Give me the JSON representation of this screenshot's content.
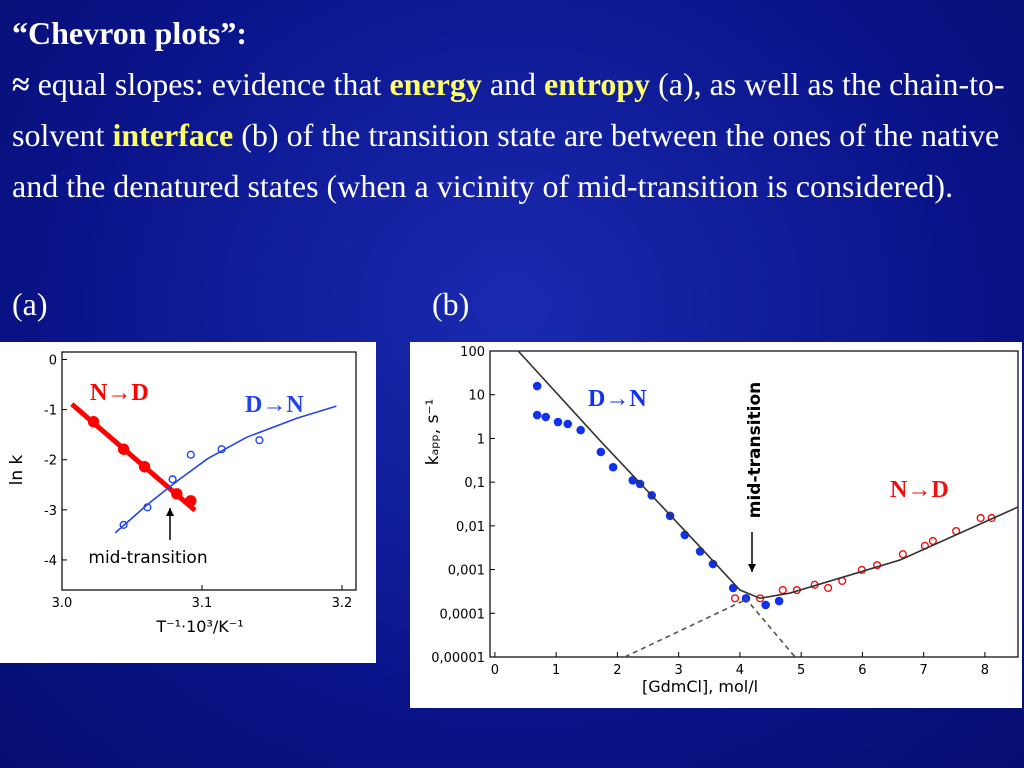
{
  "slide": {
    "title": "“Chevron plots”:",
    "body": [
      {
        "text": "≈",
        "bold": true
      },
      {
        "text": " equal slopes: evidence that "
      },
      {
        "text": "energy",
        "bold": true,
        "color": "#ffff66"
      },
      {
        "text": " and "
      },
      {
        "text": "entropy",
        "bold": true,
        "color": "#ffff66"
      },
      {
        "text": " (a), as well as the chain-to-solvent "
      },
      {
        "text": "interface",
        "bold": true,
        "color": "#ffff66"
      },
      {
        "text": " (b) of the transition state are between the ones of the native and the denatured states (when a vicinity of mid-transition is considered)."
      }
    ],
    "panel_labels": [
      "(a)",
      "(b)"
    ]
  },
  "chart_data": [
    {
      "type": "scatter",
      "xlabel": "T⁻¹·10³/K⁻¹",
      "ylabel": "ln k",
      "xlim": [
        3.0,
        3.21
      ],
      "xticks": [
        {
          "value": 3.0,
          "label": "3.0"
        },
        3.1,
        3.2
      ],
      "ylim": [
        -4.6,
        0.15
      ],
      "yticks": [
        0,
        -1,
        -2,
        -3,
        -4
      ],
      "annotations": [
        {
          "text": "mid-transition"
        }
      ],
      "series": [
        {
          "name": "N→D",
          "color": "#ff0000",
          "style": "filled",
          "x": [
            3.0225,
            3.044,
            3.059,
            3.082,
            3.092
          ],
          "values": [
            -1.24,
            -1.79,
            -2.14,
            -2.68,
            -2.82
          ]
        },
        {
          "color": "#ff0000",
          "style": "thick-line",
          "x": [
            3.007,
            3.095
          ],
          "values": [
            -0.89,
            -3.01
          ]
        },
        {
          "name": "D→N",
          "color": "#2244ee",
          "style": "open",
          "x": [
            3.044,
            3.061,
            3.079,
            3.092,
            3.114,
            3.141
          ],
          "values": [
            -3.3,
            -2.95,
            -2.39,
            -1.9,
            -1.79,
            -1.61
          ]
        },
        {
          "color": "#2244ee",
          "style": "line",
          "x": [
            3.038,
            3.062,
            3.083,
            3.104,
            3.132,
            3.168,
            3.196
          ],
          "values": [
            -3.46,
            -2.87,
            -2.41,
            -1.98,
            -1.55,
            -1.17,
            -0.93
          ]
        }
      ]
    },
    {
      "type": "scatter",
      "ylog": true,
      "xlabel": "[GdmCl], mol/l",
      "ylabel": "kₐₚₚ, s⁻¹",
      "xlim": [
        -0.08,
        8.54
      ],
      "xticks": [
        0,
        1,
        2,
        3,
        4,
        5,
        6,
        7,
        8
      ],
      "ylim": [
        1e-05,
        100
      ],
      "yticks": [
        100,
        10,
        1,
        {
          "value": 0.1,
          "label": "0,1"
        },
        {
          "value": 0.01,
          "label": "0,01"
        },
        {
          "value": 0.001,
          "label": "0,001"
        },
        {
          "value": 0.0001,
          "label": "0,0001"
        },
        {
          "value": 1e-05,
          "label": "0,00001"
        }
      ],
      "annotations": [
        {
          "text": "mid-transition"
        }
      ],
      "series": [
        {
          "name": "D→N",
          "color": "#1133ee",
          "style": "filled",
          "x": [
            0.69,
            0.69,
            0.83,
            1.03,
            1.19,
            1.4,
            1.73,
            1.93,
            2.25,
            2.37,
            2.56,
            2.86,
            3.1,
            3.35,
            3.56,
            3.89,
            4.1,
            4.42,
            4.64
          ],
          "values": [
            15.8,
            3.43,
            3.09,
            2.37,
            2.14,
            1.55,
            0.49,
            0.22,
            0.11,
            0.091,
            0.05,
            0.017,
            0.0062,
            0.0026,
            0.00134,
            0.00038,
            0.00022,
            0.000155,
            0.00019
          ]
        },
        {
          "name": "N→D",
          "color": "#ee1111",
          "style": "open",
          "x": [
            3.92,
            4.33,
            4.7,
            4.93,
            5.22,
            5.44,
            5.67,
            5.99,
            6.24,
            6.66,
            7.02,
            7.15,
            7.53,
            7.93,
            8.11
          ],
          "values": [
            0.00022,
            0.00022,
            0.00034,
            0.00034,
            0.00045,
            0.00038,
            0.00055,
            0.00098,
            0.00126,
            0.00224,
            0.0035,
            0.0045,
            0.0076,
            0.0151,
            0.0151
          ]
        },
        {
          "color": "#333333",
          "style": "line",
          "x": [
            0.38,
            1.71,
            3.35,
            4.0,
            4.33,
            4.82,
            6.61,
            8.54
          ],
          "values": [
            100,
            0.91,
            0.0033,
            0.00034,
            0.00022,
            0.00029,
            0.00165,
            0.027
          ]
        },
        {
          "color": "#555555",
          "style": "dashed",
          "x": [
            2.12,
            4.08
          ],
          "values": [
            1e-05,
            0.0002
          ]
        },
        {
          "color": "#555555",
          "style": "dashed",
          "x": [
            4.08,
            4.9
          ],
          "values": [
            0.00023,
            1e-05
          ]
        }
      ]
    }
  ]
}
